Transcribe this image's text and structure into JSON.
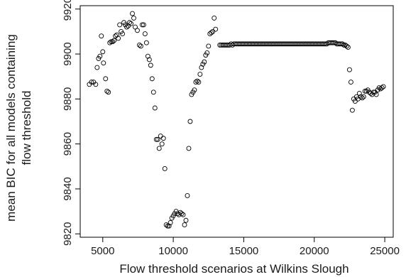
{
  "chart_data": {
    "type": "scatter",
    "title": "",
    "xlabel": "Flow threshold scenarios at Wilkins Slough",
    "ylabel_lines": [
      "mean BIC for all models containing",
      "flow threshold"
    ],
    "xlim": [
      3400,
      25600
    ],
    "ylim": [
      9818.5,
      9921.5
    ],
    "x_ticks": [
      5000,
      10000,
      15000,
      20000,
      25000
    ],
    "y_ticks": [
      9820,
      9840,
      9860,
      9880,
      9900,
      9920
    ],
    "grid": false,
    "marker": "open-circle",
    "marker_color": "#000000",
    "series": [
      {
        "points": [
          [
            4050,
            9886.5
          ],
          [
            4200,
            9887.5
          ],
          [
            4350,
            9887.5
          ],
          [
            4500,
            9886.5
          ],
          [
            4600,
            9894
          ],
          [
            4700,
            9898
          ],
          [
            4800,
            9899
          ],
          [
            4900,
            9908
          ],
          [
            5000,
            9901
          ],
          [
            5050,
            9896
          ],
          [
            5200,
            9889
          ],
          [
            5300,
            9883.5
          ],
          [
            5400,
            9883
          ],
          [
            5500,
            9905
          ],
          [
            5600,
            9905.5
          ],
          [
            5700,
            9905.5
          ],
          [
            5800,
            9906
          ],
          [
            5900,
            9908
          ],
          [
            6000,
            9908.5
          ],
          [
            6100,
            9907
          ],
          [
            6200,
            9913
          ],
          [
            6300,
            9910
          ],
          [
            6400,
            9909
          ],
          [
            6500,
            9914
          ],
          [
            6600,
            9913
          ],
          [
            6700,
            9912
          ],
          [
            6800,
            9912.5
          ],
          [
            6900,
            9914
          ],
          [
            7000,
            9913.5
          ],
          [
            7100,
            9918
          ],
          [
            7200,
            9916
          ],
          [
            7300,
            9912
          ],
          [
            7450,
            9910.5
          ],
          [
            7600,
            9904
          ],
          [
            7700,
            9903.5
          ],
          [
            7800,
            9913
          ],
          [
            7900,
            9913
          ],
          [
            8000,
            9909
          ],
          [
            8100,
            9905
          ],
          [
            8200,
            9899
          ],
          [
            8300,
            9897.5
          ],
          [
            8400,
            9895
          ],
          [
            8500,
            9889
          ],
          [
            8600,
            9883
          ],
          [
            8700,
            9876
          ],
          [
            8800,
            9862
          ],
          [
            8900,
            9862
          ],
          [
            9000,
            9858
          ],
          [
            9100,
            9863.5
          ],
          [
            9200,
            9860
          ],
          [
            9300,
            9862.5
          ],
          [
            9400,
            9849
          ],
          [
            9500,
            9824
          ],
          [
            9600,
            9823.5
          ],
          [
            9700,
            9823.5
          ],
          [
            9800,
            9825
          ],
          [
            9900,
            9827
          ],
          [
            10000,
            9828
          ],
          [
            10100,
            9829
          ],
          [
            10200,
            9830
          ],
          [
            10300,
            9829
          ],
          [
            10400,
            9828.5
          ],
          [
            10500,
            9829.5
          ],
          [
            10600,
            9829
          ],
          [
            10700,
            9828.5
          ],
          [
            10800,
            9824
          ],
          [
            10900,
            9826
          ],
          [
            11000,
            9837
          ],
          [
            11100,
            9858
          ],
          [
            11200,
            9870
          ],
          [
            11300,
            9882
          ],
          [
            11400,
            9883
          ],
          [
            11500,
            9884
          ],
          [
            11600,
            9887.5
          ],
          [
            11700,
            9888
          ],
          [
            11800,
            9887.5
          ],
          [
            11900,
            9891
          ],
          [
            12000,
            9894
          ],
          [
            12100,
            9895.5
          ],
          [
            12200,
            9896.5
          ],
          [
            12300,
            9899.5
          ],
          [
            12400,
            9900.5
          ],
          [
            12500,
            9903.5
          ],
          [
            12600,
            9909
          ],
          [
            12700,
            9909.5
          ],
          [
            12800,
            9910
          ],
          [
            12900,
            9916
          ],
          [
            13000,
            9911
          ],
          [
            13300,
            9904
          ],
          [
            13400,
            9904
          ],
          [
            13500,
            9904
          ],
          [
            13600,
            9904
          ],
          [
            13700,
            9904
          ],
          [
            13800,
            9904
          ],
          [
            13900,
            9904
          ],
          [
            14000,
            9904
          ],
          [
            14100,
            9904.5
          ],
          [
            14200,
            9904
          ],
          [
            14300,
            9904.5
          ],
          [
            14400,
            9904.5
          ],
          [
            14500,
            9904.5
          ],
          [
            14600,
            9904.5
          ],
          [
            14700,
            9904.5
          ],
          [
            14800,
            9904.5
          ],
          [
            14900,
            9904.5
          ],
          [
            15000,
            9904.5
          ],
          [
            15100,
            9904.5
          ],
          [
            15200,
            9904.5
          ],
          [
            15300,
            9904.5
          ],
          [
            15400,
            9904.5
          ],
          [
            15500,
            9904.5
          ],
          [
            15600,
            9904.5
          ],
          [
            15700,
            9904.5
          ],
          [
            15800,
            9904.5
          ],
          [
            15900,
            9904.5
          ],
          [
            16000,
            9904.5
          ],
          [
            16100,
            9904.5
          ],
          [
            16200,
            9904.5
          ],
          [
            16300,
            9904.5
          ],
          [
            16400,
            9904.5
          ],
          [
            16500,
            9904.5
          ],
          [
            16600,
            9904.5
          ],
          [
            16700,
            9904.5
          ],
          [
            16800,
            9904.5
          ],
          [
            16900,
            9904.5
          ],
          [
            17000,
            9904.5
          ],
          [
            17100,
            9904.5
          ],
          [
            17200,
            9904.5
          ],
          [
            17300,
            9904.5
          ],
          [
            17400,
            9904.5
          ],
          [
            17500,
            9904.5
          ],
          [
            17600,
            9904.5
          ],
          [
            17700,
            9904.5
          ],
          [
            17800,
            9904.5
          ],
          [
            17900,
            9904.5
          ],
          [
            18000,
            9904.5
          ],
          [
            18100,
            9904.5
          ],
          [
            18200,
            9904.5
          ],
          [
            18300,
            9904.5
          ],
          [
            18400,
            9904.5
          ],
          [
            18500,
            9904.5
          ],
          [
            18600,
            9904.5
          ],
          [
            18700,
            9904.5
          ],
          [
            18800,
            9904.5
          ],
          [
            18900,
            9904.5
          ],
          [
            19000,
            9904.5
          ],
          [
            19100,
            9904.5
          ],
          [
            19200,
            9904.5
          ],
          [
            19300,
            9904.5
          ],
          [
            19400,
            9904.5
          ],
          [
            19500,
            9904.5
          ],
          [
            19600,
            9904.5
          ],
          [
            19700,
            9904.5
          ],
          [
            19800,
            9904.5
          ],
          [
            19900,
            9904.5
          ],
          [
            20000,
            9904.5
          ],
          [
            20100,
            9904.5
          ],
          [
            20200,
            9904.5
          ],
          [
            20300,
            9904.5
          ],
          [
            20400,
            9904.5
          ],
          [
            20500,
            9904.5
          ],
          [
            20600,
            9904.5
          ],
          [
            20700,
            9904.5
          ],
          [
            20800,
            9904.5
          ],
          [
            20900,
            9904.5
          ],
          [
            21000,
            9905
          ],
          [
            21100,
            9905
          ],
          [
            21200,
            9905
          ],
          [
            21300,
            9905
          ],
          [
            21400,
            9905
          ],
          [
            21500,
            9905
          ],
          [
            21600,
            9904.5
          ],
          [
            21700,
            9904.5
          ],
          [
            21800,
            9904.5
          ],
          [
            21900,
            9904.5
          ],
          [
            22000,
            9904.5
          ],
          [
            22100,
            9904
          ],
          [
            22200,
            9904
          ],
          [
            22300,
            9903.5
          ],
          [
            22400,
            9903
          ],
          [
            22500,
            9893
          ],
          [
            22600,
            9887.5
          ],
          [
            22700,
            9875
          ],
          [
            22800,
            9880
          ],
          [
            22900,
            9879
          ],
          [
            23000,
            9881
          ],
          [
            23100,
            9880
          ],
          [
            23200,
            9882.5
          ],
          [
            23300,
            9881
          ],
          [
            23400,
            9880.5
          ],
          [
            23500,
            9881
          ],
          [
            23600,
            9883.5
          ],
          [
            23700,
            9883.5
          ],
          [
            23800,
            9884
          ],
          [
            23900,
            9883
          ],
          [
            24000,
            9882.5
          ],
          [
            24100,
            9882
          ],
          [
            24200,
            9883
          ],
          [
            24300,
            9883
          ],
          [
            24400,
            9882
          ],
          [
            24500,
            9884
          ],
          [
            24600,
            9885
          ],
          [
            24700,
            9884.5
          ],
          [
            24800,
            9885
          ],
          [
            24900,
            9885.5
          ]
        ]
      }
    ]
  }
}
